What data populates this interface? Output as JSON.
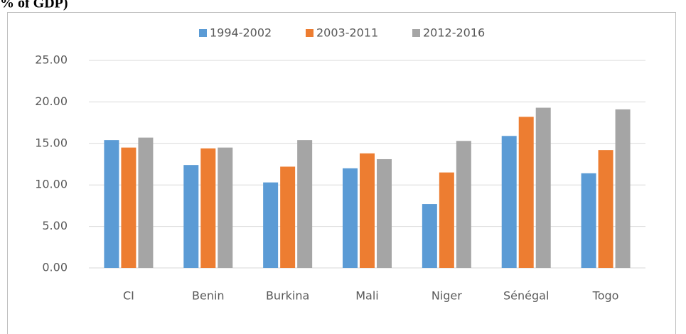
{
  "caption": "% of GDP)",
  "chart_data": {
    "type": "bar",
    "categories": [
      "CI",
      "Benin",
      "Burkina",
      "Mali",
      "Niger",
      "Sénégal",
      "Togo"
    ],
    "series": [
      {
        "name": "1994-2002",
        "color": "#5b9bd5",
        "values": [
          15.4,
          12.4,
          10.3,
          12.0,
          7.7,
          15.9,
          11.4
        ]
      },
      {
        "name": "2003-2011",
        "color": "#ed7d31",
        "values": [
          14.5,
          14.4,
          12.2,
          13.8,
          11.5,
          18.2,
          14.2
        ]
      },
      {
        "name": "2012-2016",
        "color": "#a5a5a5",
        "values": [
          15.7,
          14.5,
          15.4,
          13.1,
          15.3,
          19.3,
          19.1
        ]
      }
    ],
    "ylim": [
      0,
      25
    ],
    "yticks": [
      {
        "value": 0,
        "label": "0.00"
      },
      {
        "value": 5,
        "label": "5.00"
      },
      {
        "value": 10,
        "label": "10.00"
      },
      {
        "value": 15,
        "label": "15.00"
      },
      {
        "value": 20,
        "label": "20.00"
      },
      {
        "value": 25,
        "label": "25.00"
      }
    ],
    "grid": true,
    "legend": "top"
  }
}
